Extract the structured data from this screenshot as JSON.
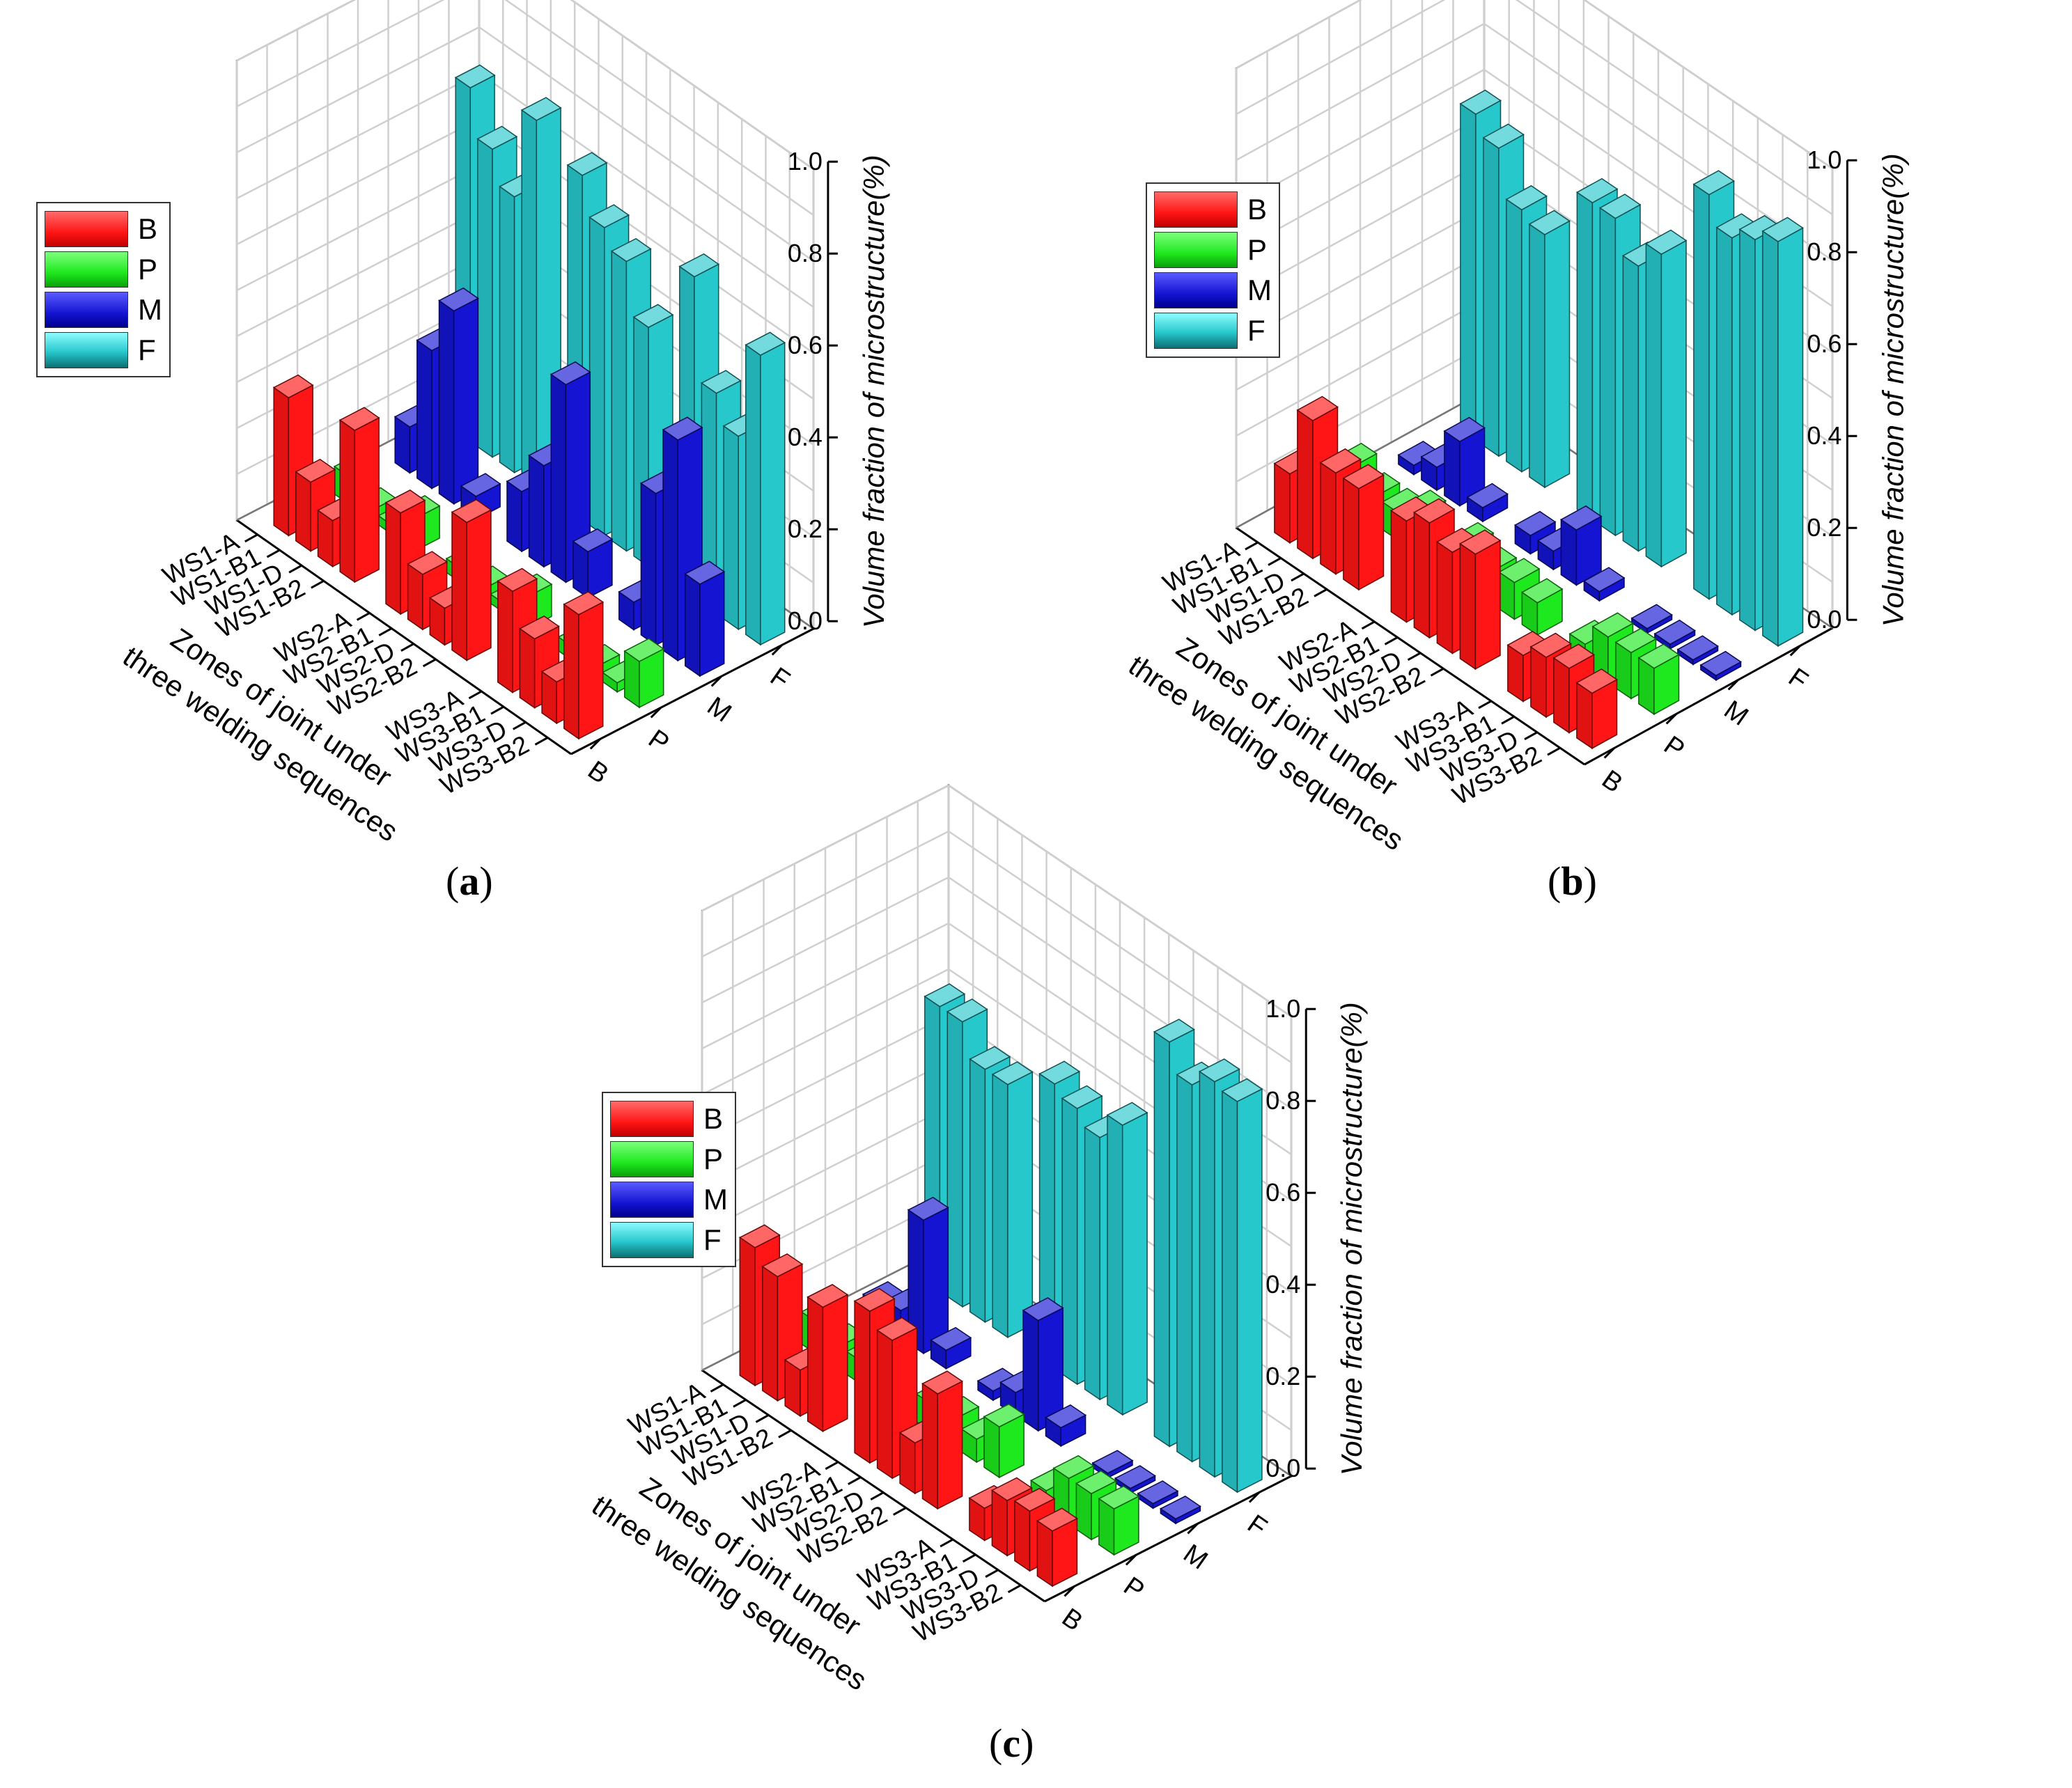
{
  "colors": {
    "B": "#ff1515",
    "P": "#1ee81e",
    "M": "#1414d2",
    "F": "#27c8cc"
  },
  "legend": [
    {
      "key": "B",
      "label": "B"
    },
    {
      "key": "P",
      "label": "P"
    },
    {
      "key": "M",
      "label": "M"
    },
    {
      "key": "F",
      "label": "F"
    }
  ],
  "panels": [
    {
      "label": "(a)",
      "label_text": "a"
    },
    {
      "label": "(b)",
      "label_text": "b"
    },
    {
      "label": "(c)",
      "label_text": "c"
    }
  ],
  "chart_data": [
    {
      "type": "bar3d",
      "panel": "a",
      "title": "",
      "xlabel_line1": "Zones of joint under",
      "xlabel_line2": "three welding sequences",
      "zlabel": "Volume fraction of microstructure(%)",
      "z_ticks": [
        "0.0",
        "0.2",
        "0.4",
        "0.6",
        "0.8",
        "1.0"
      ],
      "zlim": [
        0,
        1.0
      ],
      "categories": [
        "WS3-B2",
        "WS3-D",
        "WS3-B1",
        "WS3-A",
        "WS2-B2",
        "WS2-D",
        "WS2-B1",
        "WS2-A",
        "WS1-B2",
        "WS1-D",
        "WS1-B1",
        "WS1-A"
      ],
      "series_labels": [
        "B",
        "P",
        "M",
        "F"
      ],
      "series": [
        {
          "name": "B",
          "values": [
            0.27,
            0.09,
            0.15,
            0.22,
            0.3,
            0.08,
            0.12,
            0.22,
            0.33,
            0.1,
            0.15,
            0.3
          ]
        },
        {
          "name": "P",
          "values": [
            0.1,
            0.02,
            0.02,
            0.03,
            0.07,
            0.02,
            0.02,
            0.03,
            0.07,
            0.02,
            0.02,
            0.06
          ]
        },
        {
          "name": "M",
          "values": [
            0.2,
            0.48,
            0.33,
            0.06,
            0.1,
            0.43,
            0.22,
            0.13,
            0.05,
            0.42,
            0.3,
            0.1
          ]
        },
        {
          "name": "F",
          "values": [
            0.63,
            0.42,
            0.48,
            0.7,
            0.52,
            0.63,
            0.67,
            0.75,
            0.8,
            0.6,
            0.67,
            0.77
          ]
        }
      ]
    },
    {
      "type": "bar3d",
      "panel": "b",
      "title": "",
      "xlabel_line1": "Zones of joint under",
      "xlabel_line2": "three welding sequences",
      "zlabel": "Volume fraction of microstructure(%)",
      "z_ticks": [
        "0.0",
        "0.2",
        "0.4",
        "0.6",
        "0.8",
        "1.0"
      ],
      "zlim": [
        0,
        1.0
      ],
      "categories": [
        "WS3-B2",
        "WS3-D",
        "WS3-B1",
        "WS3-A",
        "WS2-B2",
        "WS2-D",
        "WS2-B1",
        "WS2-A",
        "WS1-B2",
        "WS1-D",
        "WS1-B1",
        "WS1-A"
      ],
      "series_labels": [
        "B",
        "P",
        "M",
        "F"
      ],
      "series": [
        {
          "name": "B",
          "values": [
            0.12,
            0.14,
            0.13,
            0.1,
            0.25,
            0.22,
            0.25,
            0.22,
            0.22,
            0.22,
            0.3,
            0.15
          ]
        },
        {
          "name": "P",
          "values": [
            0.1,
            0.1,
            0.1,
            0.05,
            0.07,
            0.08,
            0.07,
            0.09,
            0.09,
            0.06,
            0.06,
            0.09
          ]
        },
        {
          "name": "M",
          "values": [
            0.01,
            0.01,
            0.01,
            0.01,
            0.02,
            0.12,
            0.04,
            0.04,
            0.03,
            0.14,
            0.05,
            0.02
          ]
        },
        {
          "name": "F",
          "values": [
            0.88,
            0.85,
            0.82,
            0.88,
            0.68,
            0.62,
            0.69,
            0.69,
            0.55,
            0.57,
            0.67,
            0.71
          ]
        }
      ]
    },
    {
      "type": "bar3d",
      "panel": "c",
      "title": "",
      "xlabel_line1": "Zones of joint under",
      "xlabel_line2": "three welding sequences",
      "zlabel": "Volume fraction of microstructure(%)",
      "z_ticks": [
        "0.0",
        "0.2",
        "0.4",
        "0.6",
        "0.8",
        "1.0"
      ],
      "zlim": [
        0,
        1.0
      ],
      "categories": [
        "WS3-B2",
        "WS3-D",
        "WS3-B1",
        "WS3-A",
        "WS2-B2",
        "WS2-D",
        "WS2-B1",
        "WS2-A",
        "WS1-B2",
        "WS1-D",
        "WS1-B1",
        "WS1-A"
      ],
      "series_labels": [
        "B",
        "P",
        "M",
        "F"
      ],
      "series": [
        {
          "name": "B",
          "values": [
            0.12,
            0.13,
            0.12,
            0.07,
            0.25,
            0.11,
            0.3,
            0.33,
            0.27,
            0.1,
            0.27,
            0.3
          ]
        },
        {
          "name": "P",
          "values": [
            0.1,
            0.1,
            0.1,
            0.04,
            0.11,
            0.05,
            0.06,
            0.06,
            0.05,
            0.05,
            0.05,
            0.07
          ]
        },
        {
          "name": "M",
          "values": [
            0.01,
            0.01,
            0.01,
            0.01,
            0.04,
            0.24,
            0.05,
            0.02,
            0.04,
            0.29,
            0.06,
            0.04
          ]
        },
        {
          "name": "F",
          "values": [
            0.85,
            0.86,
            0.82,
            0.88,
            0.63,
            0.57,
            0.6,
            0.62,
            0.55,
            0.55,
            0.62,
            0.62
          ]
        }
      ]
    }
  ]
}
